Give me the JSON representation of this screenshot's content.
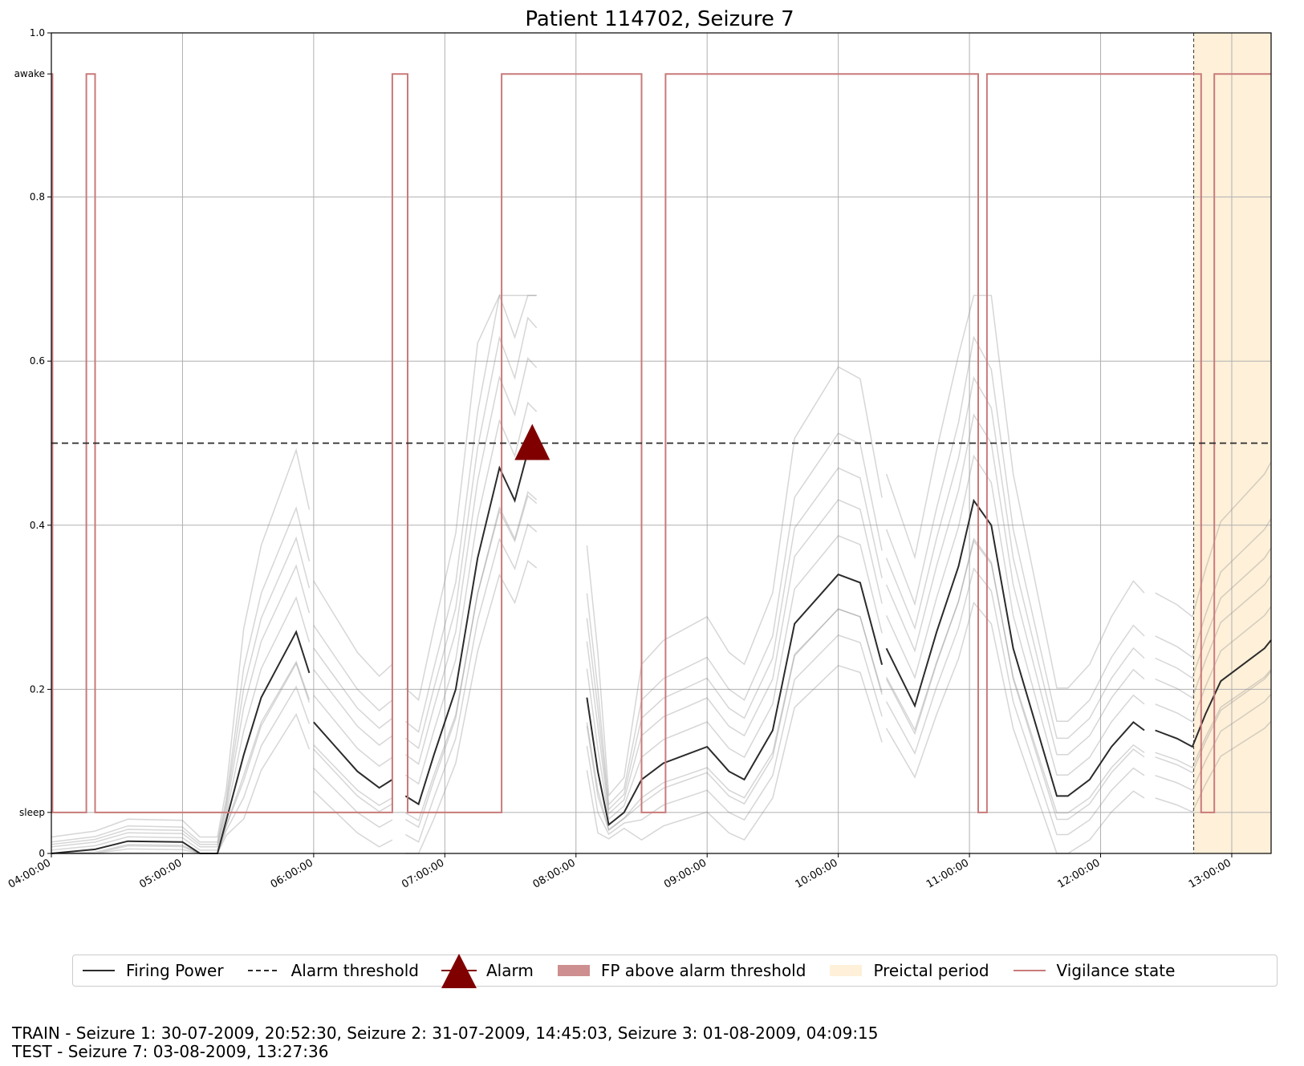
{
  "chart_data": {
    "type": "line",
    "title": "Patient 114702, Seizure 7",
    "xlabel": "",
    "ylabel": "",
    "x_range": [
      "04:00:00",
      "13:18:00"
    ],
    "ylim": [
      0,
      1.0
    ],
    "grid": true,
    "x_ticks": [
      "04:00:00",
      "05:00:00",
      "06:00:00",
      "07:00:00",
      "08:00:00",
      "09:00:00",
      "10:00:00",
      "11:00:00",
      "12:00:00",
      "13:00:00"
    ],
    "y_ticks": [
      {
        "value": 0,
        "label": "0"
      },
      {
        "value": 0.05,
        "label": "sleep"
      },
      {
        "value": 0.2,
        "label": "0.2"
      },
      {
        "value": 0.4,
        "label": "0.4"
      },
      {
        "value": 0.6,
        "label": "0.6"
      },
      {
        "value": 0.8,
        "label": "0.8"
      },
      {
        "value": 0.95,
        "label": "awake"
      },
      {
        "value": 1.0,
        "label": "1.0"
      }
    ],
    "alarm_threshold": 0.5,
    "alarm": {
      "time": "07:40:00",
      "value": 0.5
    },
    "preictal_period": {
      "start": "12:42:36",
      "end": "13:18:00"
    },
    "vigilance_state": {
      "awake_value": 0.95,
      "sleep_value": 0.05,
      "segments": [
        {
          "start": "04:00:00",
          "end": "04:00:30",
          "state": "awake"
        },
        {
          "start": "04:00:30",
          "end": "04:16:00",
          "state": "sleep"
        },
        {
          "start": "04:16:00",
          "end": "04:20:00",
          "state": "awake"
        },
        {
          "start": "04:20:00",
          "end": "06:36:00",
          "state": "sleep"
        },
        {
          "start": "06:36:00",
          "end": "06:43:00",
          "state": "awake"
        },
        {
          "start": "06:43:00",
          "end": "07:26:00",
          "state": "sleep"
        },
        {
          "start": "07:26:00",
          "end": "08:30:00",
          "state": "awake"
        },
        {
          "start": "08:30:00",
          "end": "08:41:00",
          "state": "sleep"
        },
        {
          "start": "08:41:00",
          "end": "11:04:00",
          "state": "awake"
        },
        {
          "start": "11:04:00",
          "end": "11:08:00",
          "state": "sleep"
        },
        {
          "start": "11:08:00",
          "end": "12:46:00",
          "state": "awake"
        },
        {
          "start": "12:46:00",
          "end": "12:52:00",
          "state": "sleep"
        },
        {
          "start": "12:52:00",
          "end": "13:18:00",
          "state": "awake"
        }
      ]
    },
    "firing_power": {
      "segments": [
        {
          "x": [
            "04:00:00",
            "04:20:00",
            "04:35:00",
            "05:00:00",
            "05:08:00",
            "05:16:00",
            "05:20:00",
            "05:28:00",
            "05:36:00",
            "05:44:00",
            "05:52:00",
            "05:58:00"
          ],
          "y": [
            0.0,
            0.005,
            0.015,
            0.014,
            0.0,
            0.0,
            0.04,
            0.12,
            0.19,
            0.23,
            0.27,
            0.22
          ]
        },
        {
          "x": [
            "06:00:00",
            "06:10:00",
            "06:20:00",
            "06:30:00",
            "06:36:00"
          ],
          "y": [
            0.16,
            0.13,
            0.1,
            0.08,
            0.09
          ]
        },
        {
          "x": [
            "06:42:00",
            "06:48:00",
            "06:55:00",
            "07:05:00",
            "07:15:00",
            "07:25:00",
            "07:32:00",
            "07:38:00",
            "07:42:00"
          ],
          "y": [
            0.07,
            0.06,
            0.12,
            0.2,
            0.36,
            0.47,
            0.43,
            0.49,
            0.48
          ]
        },
        {
          "x": [
            "08:05:00",
            "08:10:00",
            "08:15:00",
            "08:22:00",
            "08:30:00",
            "08:40:00",
            "08:50:00",
            "09:00:00",
            "09:10:00",
            "09:17:00",
            "09:30:00",
            "09:40:00",
            "09:50:00",
            "10:00:00",
            "10:10:00",
            "10:20:00"
          ],
          "y": [
            0.19,
            0.1,
            0.035,
            0.05,
            0.09,
            0.11,
            0.12,
            0.13,
            0.1,
            0.09,
            0.15,
            0.28,
            0.31,
            0.34,
            0.33,
            0.23
          ]
        },
        {
          "x": [
            "10:22:00",
            "10:35:00",
            "10:45:00",
            "10:55:00",
            "11:02:00",
            "11:10:00",
            "11:20:00",
            "11:30:00",
            "11:40:00",
            "11:45:00",
            "11:55:00",
            "12:05:00",
            "12:15:00",
            "12:20:00"
          ],
          "y": [
            0.25,
            0.18,
            0.27,
            0.35,
            0.43,
            0.4,
            0.25,
            0.16,
            0.07,
            0.07,
            0.09,
            0.13,
            0.16,
            0.15
          ]
        },
        {
          "x": [
            "12:25:00",
            "12:35:00",
            "12:42:00",
            "12:48:00",
            "12:55:00",
            "13:05:00",
            "13:15:00",
            "13:18:00"
          ],
          "y": [
            0.15,
            0.14,
            0.13,
            0.17,
            0.21,
            0.23,
            0.25,
            0.26
          ]
        }
      ]
    },
    "legend": [
      {
        "label": "Firing Power",
        "color": "#2b2b2b",
        "style": "line"
      },
      {
        "label": "Alarm threshold",
        "color": "#2b2b2b",
        "style": "dashed"
      },
      {
        "label": "Alarm",
        "color": "#800000",
        "style": "triangle"
      },
      {
        "label": "FP above alarm threshold",
        "color": "#cd8f8f",
        "style": "patch"
      },
      {
        "label": "Preictal period",
        "color": "#fef0d9",
        "style": "patch"
      },
      {
        "label": "Vigilance state",
        "color": "#c97a7a",
        "style": "line"
      }
    ],
    "colors": {
      "firing_power": "#2b2b2b",
      "ensemble": "#8a8a8a",
      "alarm": "#800000",
      "vigilance": "#c97a7a",
      "preictal": "#fef0d9",
      "grid": "#b0b0b0"
    }
  },
  "footer": {
    "line1": "TRAIN - Seizure 1: 30-07-2009, 20:52:30, Seizure 2: 31-07-2009, 14:45:03, Seizure 3: 01-08-2009, 04:09:15",
    "line2": "TEST - Seizure 7: 03-08-2009, 13:27:36"
  }
}
